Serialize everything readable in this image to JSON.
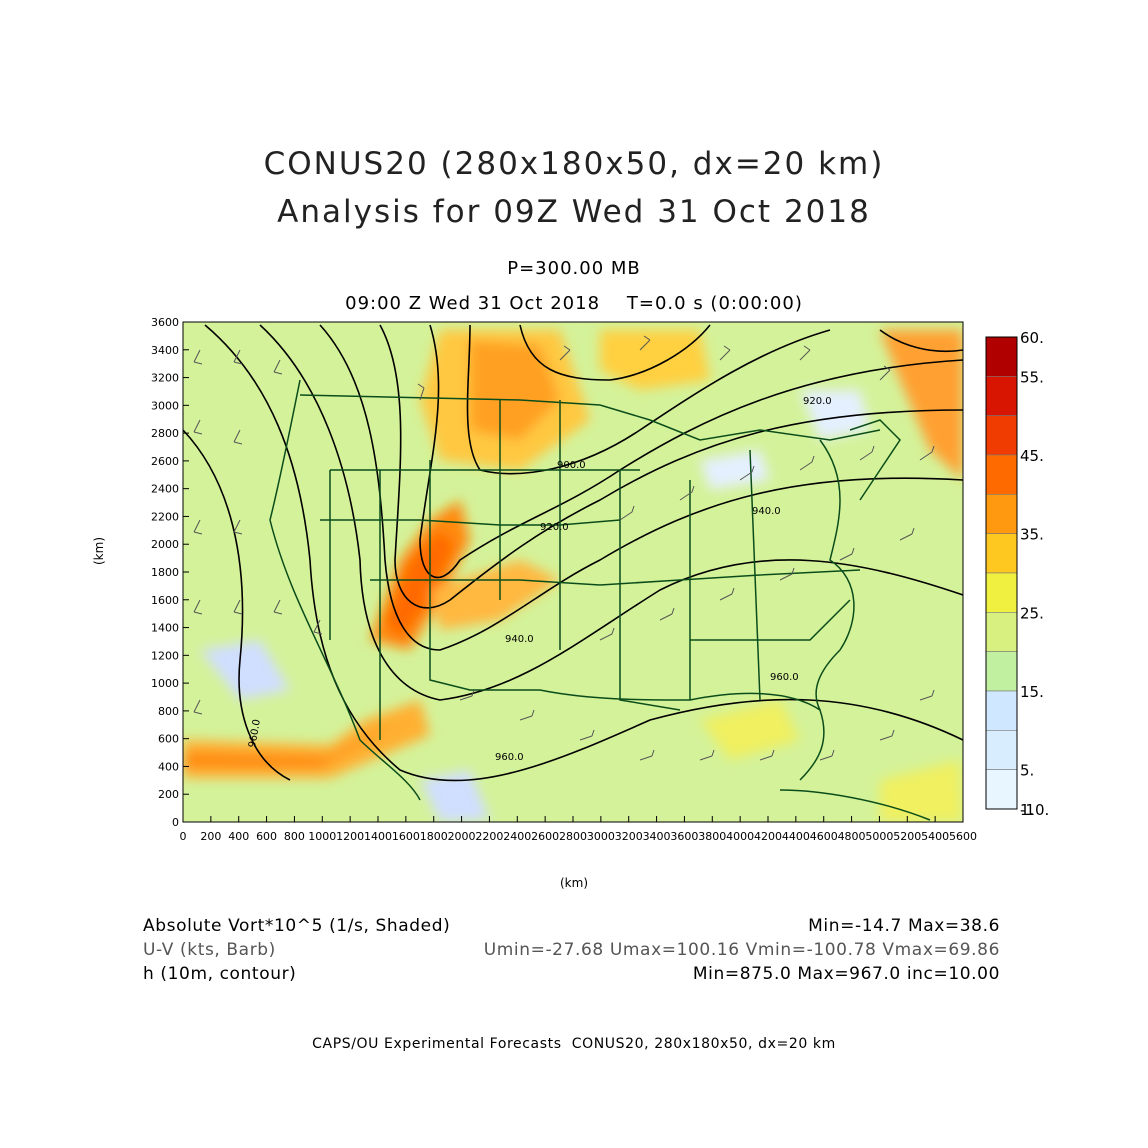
{
  "title": {
    "line1": "CONUS20 (280x180x50, dx=20 km)",
    "line2": "Analysis for 09Z Wed 31 Oct 2018"
  },
  "subtitle": {
    "level": "P=300.00 MB",
    "time": "09:00 Z Wed 31 Oct 2018    T=0.0 s (0:00:00)"
  },
  "axes": {
    "x_unit": "(km)",
    "y_unit": "(km)",
    "x_ticks": [
      "0",
      "200",
      "400",
      "600",
      "800",
      "1000",
      "1200",
      "1400",
      "1600",
      "1800",
      "2000",
      "2200",
      "2400",
      "2600",
      "2800",
      "3000",
      "3200",
      "3400",
      "3600",
      "3800",
      "4000",
      "4200",
      "4400",
      "4600",
      "4800",
      "5000",
      "5200",
      "5400",
      "5600"
    ],
    "y_ticks": [
      "0",
      "200",
      "400",
      "600",
      "800",
      "1000",
      "1200",
      "1400",
      "1600",
      "1800",
      "2000",
      "2200",
      "2400",
      "2600",
      "2800",
      "3000",
      "3200",
      "3400",
      "3600"
    ],
    "x_range": [
      0,
      5600
    ],
    "y_range": [
      0,
      3600
    ]
  },
  "colorbar": {
    "labels": [
      "60.",
      "55.",
      "45.",
      "35.",
      "25.",
      "15.",
      "5.",
      "1.",
      "-10."
    ],
    "colors": [
      "#b00000",
      "#d81500",
      "#f03c00",
      "#ff6a00",
      "#ff9a10",
      "#ffc820",
      "#f0f040",
      "#d8f080",
      "#c0f0a0",
      "#d0e8ff",
      "#d8eeff",
      "#e8f6ff"
    ]
  },
  "contour_labels": [
    "900.0",
    "920.0",
    "940.0",
    "960.0"
  ],
  "legend": {
    "line1_left": "Absolute Vort*10^5 (1/s, Shaded)",
    "line1_right": "Min=-14.7 Max=38.6",
    "line2_left": "U-V (kts, Barb)",
    "line2_right": "Umin=-27.68 Umax=100.16 Vmin=-100.78 Vmax=69.86",
    "line3_left": "h (10m, contour)",
    "line3_right": "Min=875.0 Max=967.0 inc=10.00"
  },
  "credit": "CAPS/OU Experimental Forecasts  CONUS20, 280x180x50, dx=20 km"
}
